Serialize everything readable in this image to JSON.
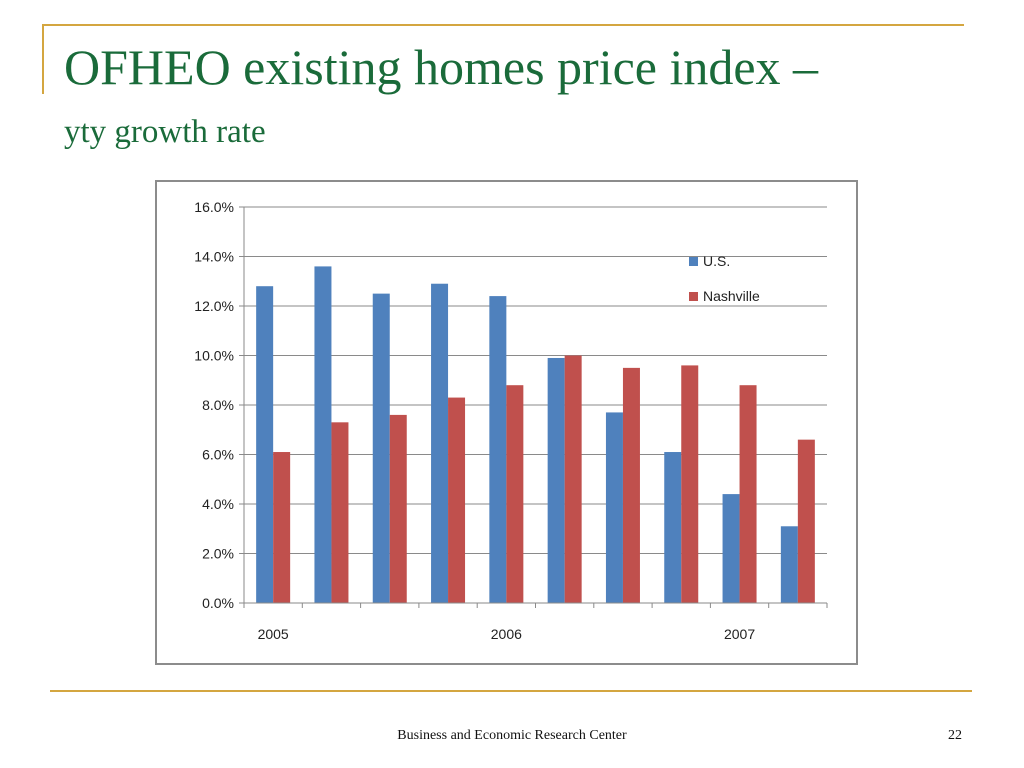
{
  "slide": {
    "title": "OFHEO existing homes price index –",
    "subtitle": "yty growth rate",
    "footer": "Business and Economic Research Center",
    "page_number": "22"
  },
  "colors": {
    "title": "#1a6b3a",
    "accent_rule": "#d4a640",
    "us": "#4f81bd",
    "nashville": "#c0504d"
  },
  "chart_data": {
    "type": "bar",
    "title": "",
    "xlabel": "",
    "ylabel": "",
    "ylim": [
      0,
      16
    ],
    "y_ticks": [
      "0.0%",
      "2.0%",
      "4.0%",
      "6.0%",
      "8.0%",
      "10.0%",
      "12.0%",
      "14.0%",
      "16.0%"
    ],
    "y_tick_values": [
      0,
      2,
      4,
      6,
      8,
      10,
      12,
      14,
      16
    ],
    "x_labels": [
      {
        "text": "2005",
        "category_index": 0
      },
      {
        "text": "2006",
        "category_index": 4
      },
      {
        "text": "2007",
        "category_index": 8
      }
    ],
    "category_count": 10,
    "grid": true,
    "legend_position": "top-right",
    "series": [
      {
        "name": "U.S.",
        "color": "#4f81bd",
        "values": [
          12.8,
          13.6,
          12.5,
          12.9,
          12.4,
          9.9,
          7.7,
          6.1,
          4.4,
          3.1
        ]
      },
      {
        "name": "Nashville",
        "color": "#c0504d",
        "values": [
          6.1,
          7.3,
          7.6,
          8.3,
          8.8,
          10.0,
          9.5,
          9.6,
          8.8,
          6.6
        ]
      }
    ]
  }
}
